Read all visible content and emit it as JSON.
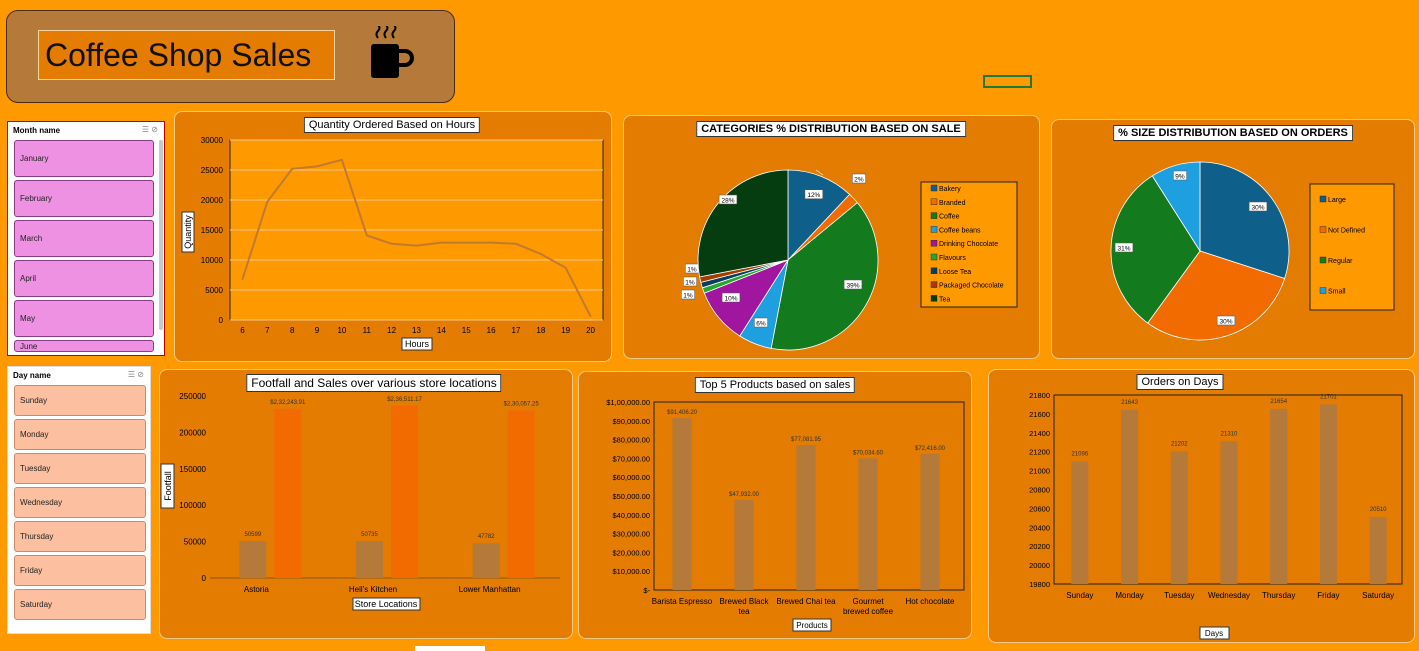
{
  "title": "Coffee Shop Sales",
  "colors": {
    "background": "#ff9900",
    "panel": "#e37c00",
    "title_bg": "#b5793a",
    "line": "#c07a30",
    "bar_brown": "#b5793a",
    "bar_orange": "#f26b00"
  },
  "icon": "coffee-cup-icon",
  "slicers": {
    "month": {
      "header": "Month name",
      "items": [
        "January",
        "February",
        "March",
        "April",
        "May",
        "June"
      ]
    },
    "day": {
      "header": "Day name",
      "items": [
        "Sunday",
        "Monday",
        "Tuesday",
        "Wednesday",
        "Thursday",
        "Friday",
        "Saturday"
      ]
    }
  },
  "charts": {
    "hours": {
      "title": "Quantity Ordered Based on Hours",
      "xlabel": "Hours",
      "ylabel": "Quantity"
    },
    "categories": {
      "title": "CATEGORIES % DISTRIBUTION BASED ON SALE"
    },
    "sizes": {
      "title": "% SIZE DISTRIBUTION BASED ON ORDERS"
    },
    "footfall": {
      "title": "Footfall and Sales over various store locations",
      "xlabel": "Store Locations",
      "ylabel": "Footfall"
    },
    "products": {
      "title": "Top 5 Products based on sales",
      "xlabel": "Products"
    },
    "days": {
      "title": "Orders on Days",
      "xlabel": "Days"
    }
  },
  "chart_data": [
    {
      "type": "line",
      "title": "Quantity Ordered Based on Hours",
      "xlabel": "Hours",
      "ylabel": "Quantity",
      "x": [
        6,
        7,
        8,
        9,
        10,
        11,
        12,
        13,
        14,
        15,
        16,
        17,
        18,
        19,
        20
      ],
      "values": [
        6800,
        19700,
        25200,
        25600,
        26700,
        14100,
        12700,
        12400,
        12900,
        12900,
        12900,
        12700,
        11000,
        8700,
        600
      ],
      "ylim": [
        0,
        30000
      ],
      "yticks": [
        0,
        5000,
        10000,
        15000,
        20000,
        25000,
        30000
      ],
      "grid": true
    },
    {
      "type": "pie",
      "title": "CATEGORIES % DISTRIBUTION BASED ON SALE",
      "labels": [
        "Bakery",
        "Branded",
        "Coffee",
        "Coffee beans",
        "Drinking Chocolate",
        "Flavours",
        "Loose Tea",
        "Packaged Chocolate",
        "Tea"
      ],
      "values": [
        12,
        2,
        39,
        6,
        10,
        1,
        1,
        1,
        28
      ],
      "data_labels": [
        "12%",
        "2%",
        "39%",
        "6%",
        "10%",
        "1%",
        "1%",
        "1%",
        "28%"
      ],
      "colors": [
        "#0e5f8a",
        "#f26b00",
        "#147a1e",
        "#1ea0e0",
        "#a0169e",
        "#27a52f",
        "#0b3d5e",
        "#a33d00",
        "#063d10"
      ],
      "legend": "right"
    },
    {
      "type": "pie",
      "title": "% SIZE DISTRIBUTION BASED ON ORDERS",
      "labels": [
        "Large",
        "Not Defined",
        "Regular",
        "Small"
      ],
      "values": [
        30,
        30,
        31,
        9
      ],
      "data_labels": [
        "30%",
        "30%",
        "31%",
        "9%"
      ],
      "colors": [
        "#0e5f8a",
        "#f26b00",
        "#147a1e",
        "#1ea0e0"
      ],
      "legend": "right"
    },
    {
      "type": "bar",
      "title": "Footfall and Sales over various store locations",
      "xlabel": "Store Locations",
      "ylabel": "Footfall",
      "categories": [
        "Astoria",
        "Hell's Kitchen",
        "Lower Manhattan"
      ],
      "series": [
        {
          "values": [
            50599,
            50735,
            47782
          ],
          "data_labels": [
            "50599",
            "50735",
            "47782"
          ]
        },
        {
          "values": [
            232243.91,
            236511.17,
            230057.25
          ],
          "data_labels": [
            "$2,32,243.91",
            "$2,36,511.17",
            "$2,30,057.25"
          ]
        }
      ],
      "ylim": [
        0,
        250000
      ],
      "yticks": [
        0,
        50000,
        100000,
        150000,
        200000,
        250000
      ],
      "ytick_labels": [
        "0",
        "50000",
        "100000",
        "150000",
        "200000",
        "250000"
      ]
    },
    {
      "type": "bar",
      "title": "Top 5 Products based on sales",
      "xlabel": "Products",
      "categories": [
        "Barista Espresso",
        "Brewed Black tea",
        "Brewed Chai tea",
        "Gourmet brewed coffee",
        "Hot chocolate"
      ],
      "values": [
        91406.2,
        47932,
        77081.95,
        70034.6,
        72416
      ],
      "data_labels": [
        "$91,406.20",
        "$47,932.00",
        "$77,081.95",
        "$70,034.60",
        "$72,416.00"
      ],
      "ylim": [
        0,
        100000
      ],
      "yticks": [
        0,
        10000,
        20000,
        30000,
        40000,
        50000,
        60000,
        70000,
        80000,
        90000,
        100000
      ],
      "ytick_labels": [
        "$-",
        "$10,000.00",
        "$20,000.00",
        "$30,000.00",
        "$40,000.00",
        "$50,000.00",
        "$60,000.00",
        "$70,000.00",
        "$80,000.00",
        "$90,000.00",
        "$1,00,000.00"
      ]
    },
    {
      "type": "bar",
      "title": "Orders on Days",
      "xlabel": "Days",
      "categories": [
        "Sunday",
        "Monday",
        "Tuesday",
        "Wednesday",
        "Thursday",
        "Friday",
        "Saturday"
      ],
      "values": [
        21096,
        21643,
        21202,
        21310,
        21654,
        21701,
        20510
      ],
      "data_labels": [
        "21096",
        "21643",
        "21202",
        "21310",
        "21654",
        "21701",
        "20510"
      ],
      "ylim": [
        19800,
        21800
      ],
      "yticks": [
        19800,
        20000,
        20200,
        20400,
        20600,
        20800,
        21000,
        21200,
        21400,
        21600,
        21800
      ]
    }
  ]
}
